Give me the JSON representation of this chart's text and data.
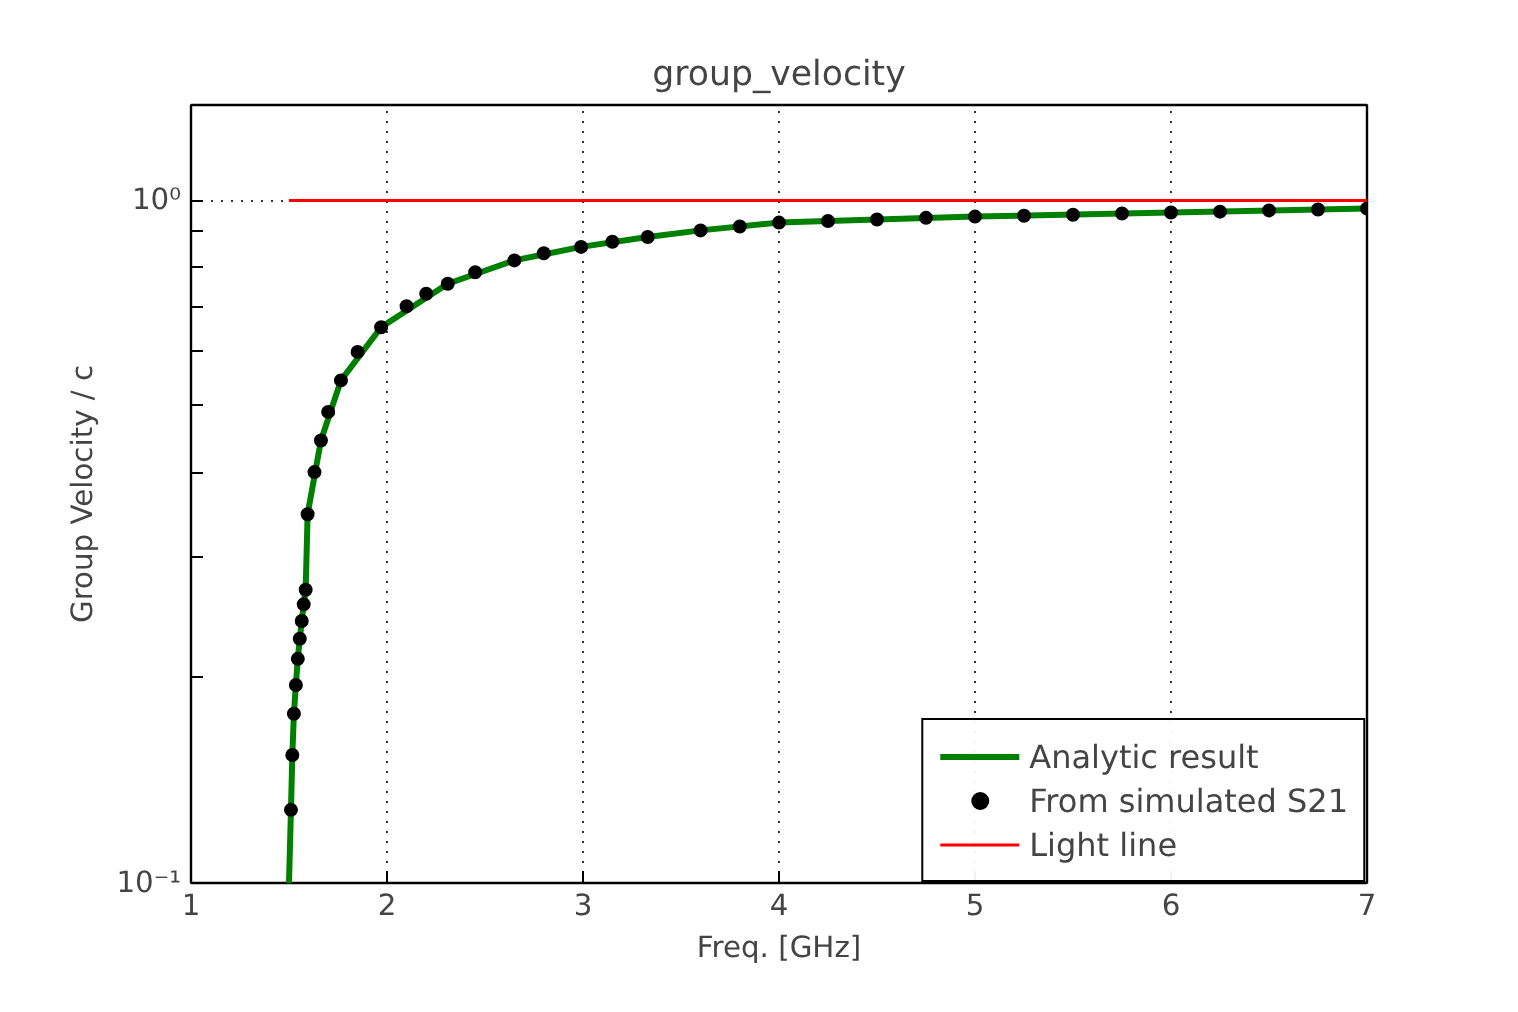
{
  "chart_data": {
    "type": "line",
    "title": "group_velocity",
    "xlabel": "Freq. [GHz]",
    "ylabel": "Group Velocity / c",
    "log": "y",
    "grid": true,
    "legend": "bottom right",
    "xlim": [
      1,
      7
    ],
    "xticks": [
      1,
      2,
      3,
      4,
      5,
      6,
      7
    ],
    "ylim": [
      0.1,
      1.38
    ],
    "yticks": [
      {
        "value": 0.1,
        "label": "10⁻¹"
      },
      {
        "value": 0.2,
        "label": null
      },
      {
        "value": 0.3,
        "label": null
      },
      {
        "value": 0.4,
        "label": null
      },
      {
        "value": 0.5,
        "label": null
      },
      {
        "value": 0.6,
        "label": null
      },
      {
        "value": 0.7,
        "label": null
      },
      {
        "value": 0.8,
        "label": null
      },
      {
        "value": 0.9,
        "label": null
      },
      {
        "value": 1,
        "label": "10⁰"
      }
    ],
    "series": [
      {
        "name": "Analytic result",
        "color": "#008000",
        "x": [
          1.5,
          1.51,
          1.517,
          1.525,
          1.535,
          1.545,
          1.555,
          1.565,
          1.575,
          1.585,
          1.595,
          1.663,
          1.765,
          1.97,
          2.31,
          2.65,
          2.99,
          3.33,
          3.6,
          4,
          5,
          6,
          7
        ],
        "values": [
          0.1,
          0.128,
          0.154,
          0.177,
          0.195,
          0.213,
          0.228,
          0.242,
          0.256,
          0.269,
          0.347,
          0.445,
          0.545,
          0.652,
          0.755,
          0.817,
          0.855,
          0.884,
          0.904,
          0.928,
          0.947,
          0.96,
          0.973
        ]
      },
      {
        "name": "From simulated S21",
        "type": "scatter",
        "marker": "circle",
        "color": "#000000",
        "x": [
          1.51,
          1.517,
          1.525,
          1.535,
          1.545,
          1.555,
          1.565,
          1.575,
          1.585,
          1.595,
          1.63,
          1.663,
          1.7,
          1.765,
          1.85,
          1.97,
          2.1,
          2.2,
          2.31,
          2.45,
          2.65,
          2.8,
          2.99,
          3.15,
          3.33,
          3.6,
          3.8,
          4,
          4.25,
          4.5,
          4.75,
          5,
          5.25,
          5.5,
          5.75,
          6,
          6.25,
          6.5,
          6.75,
          7
        ],
        "values": [
          0.128,
          0.154,
          0.177,
          0.195,
          0.213,
          0.228,
          0.242,
          0.256,
          0.269,
          0.347,
          0.4,
          0.445,
          0.49,
          0.545,
          0.6,
          0.652,
          0.7,
          0.73,
          0.755,
          0.785,
          0.817,
          0.837,
          0.855,
          0.87,
          0.884,
          0.904,
          0.916,
          0.928,
          0.933,
          0.938,
          0.943,
          0.947,
          0.95,
          0.953,
          0.957,
          0.96,
          0.963,
          0.967,
          0.97,
          0.973
        ]
      },
      {
        "name": "Light line",
        "type": "line",
        "color": "#ff0000",
        "x": [
          1.5,
          7
        ],
        "values": [
          1,
          1
        ]
      }
    ]
  }
}
